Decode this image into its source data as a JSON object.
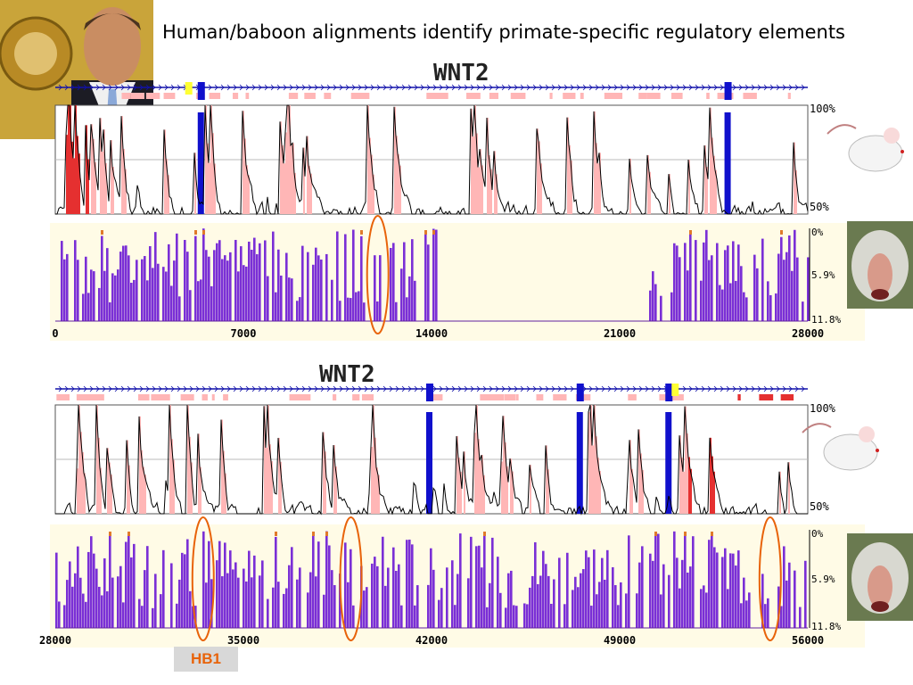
{
  "slide": {
    "title": "Human/baboon alignments identify primate-specific regulatory elements",
    "hb1_label": "HB1"
  },
  "colors": {
    "exon": "#1010cc",
    "utr": "#ffff33",
    "conserved_noncoding": "#ffb6b6",
    "repeat_red": "#e53030",
    "baboon_bar": "#7a2fd6",
    "conserved_bar": "#e07a2a",
    "highlight_oval": "#e8630a",
    "panel_bg": "#fffbe6"
  },
  "chart_data": [
    {
      "type": "area",
      "gene_label": "WNT2",
      "comparison": "human vs mouse",
      "x_ticks": [
        0,
        7000,
        14000,
        21000,
        28000
      ],
      "xlim": [
        0,
        28000
      ],
      "mouse_track": {
        "ylabel_top": "100%",
        "ylabel_bottom": "50%",
        "ylim": [
          50,
          100
        ]
      },
      "baboon_track": {
        "tick_labels": [
          "0%",
          "5.9%",
          "11.8%"
        ],
        "ylim": [
          0,
          11.8
        ]
      },
      "exons": [
        5400,
        25000
      ],
      "utrs": [
        4900
      ],
      "ovals": [
        12000
      ]
    },
    {
      "type": "area",
      "gene_label": "WNT2",
      "comparison": "human vs mouse",
      "x_ticks": [
        28000,
        35000,
        42000,
        49000,
        56000
      ],
      "xlim": [
        28000,
        56000
      ],
      "mouse_track": {
        "ylabel_top": "100%",
        "ylabel_bottom": "50%",
        "ylim": [
          50,
          100
        ]
      },
      "baboon_track": {
        "tick_labels": [
          "0%",
          "5.9%",
          "11.8%"
        ],
        "ylim": [
          0,
          11.8
        ]
      },
      "exons": [
        41900,
        47500,
        50800
      ],
      "utrs": [
        51000
      ],
      "ovals": [
        33500,
        39000,
        54600
      ]
    }
  ]
}
